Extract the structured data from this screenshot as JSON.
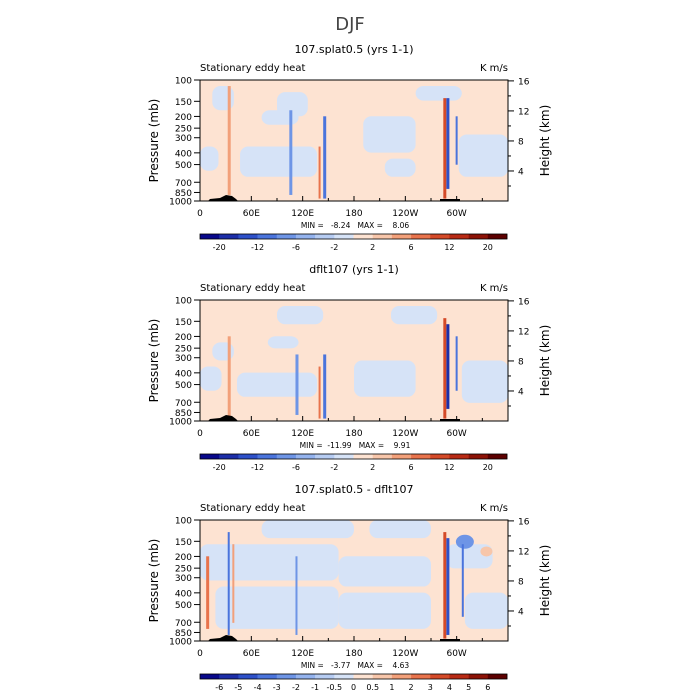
{
  "figure": {
    "title": "DJF"
  },
  "chart_data": [
    {
      "type": "heatmap",
      "title": "107.splat0.5 (yrs 1-1)",
      "left_label": "Stationary eddy heat",
      "right_label": "K m/s",
      "ylabel": "Pressure (mb)",
      "ylabel_right": "Height (km)",
      "x_ticks": [
        "0",
        "60E",
        "120E",
        "180",
        "120W",
        "60W"
      ],
      "x_tick_values": [
        0,
        60,
        120,
        180,
        240,
        300
      ],
      "xlim": [
        0,
        360
      ],
      "y_ticks": [
        "100",
        "150",
        "200",
        "250",
        "300",
        "400",
        "500",
        "700",
        "850",
        "1000"
      ],
      "y_tick_values": [
        100,
        150,
        200,
        250,
        300,
        400,
        500,
        700,
        850,
        1000
      ],
      "ylim": [
        1000,
        100
      ],
      "y_right_ticks": [
        "4",
        "8",
        "12",
        "16"
      ],
      "y_right_tick_values": [
        4,
        8,
        12,
        16
      ],
      "stats": "MIN =   -8.24   MAX =    8.06",
      "colorbar_labels": [
        "-20",
        "-12",
        "-6",
        "-2",
        "2",
        "6",
        "12",
        "20"
      ]
    },
    {
      "type": "heatmap",
      "title": "dflt107 (yrs 1-1)",
      "left_label": "Stationary eddy heat",
      "right_label": "K m/s",
      "ylabel": "Pressure (mb)",
      "ylabel_right": "Height (km)",
      "x_ticks": [
        "0",
        "60E",
        "120E",
        "180",
        "120W",
        "60W"
      ],
      "x_tick_values": [
        0,
        60,
        120,
        180,
        240,
        300
      ],
      "xlim": [
        0,
        360
      ],
      "y_ticks": [
        "100",
        "150",
        "200",
        "250",
        "300",
        "400",
        "500",
        "700",
        "850",
        "1000"
      ],
      "y_tick_values": [
        100,
        150,
        200,
        250,
        300,
        400,
        500,
        700,
        850,
        1000
      ],
      "ylim": [
        1000,
        100
      ],
      "y_right_ticks": [
        "4",
        "8",
        "12",
        "16"
      ],
      "y_right_tick_values": [
        4,
        8,
        12,
        16
      ],
      "stats": "MIN =  -11.99   MAX =    9.91",
      "colorbar_labels": [
        "-20",
        "-12",
        "-6",
        "-2",
        "2",
        "6",
        "12",
        "20"
      ]
    },
    {
      "type": "heatmap",
      "title": "107.splat0.5 - dflt107",
      "left_label": "Stationary eddy heat",
      "right_label": "K m/s",
      "ylabel": "Pressure (mb)",
      "ylabel_right": "Height (km)",
      "x_ticks": [
        "0",
        "60E",
        "120E",
        "180",
        "120W",
        "60W"
      ],
      "x_tick_values": [
        0,
        60,
        120,
        180,
        240,
        300
      ],
      "xlim": [
        0,
        360
      ],
      "y_ticks": [
        "100",
        "150",
        "200",
        "250",
        "300",
        "400",
        "500",
        "700",
        "850",
        "1000"
      ],
      "y_tick_values": [
        100,
        150,
        200,
        250,
        300,
        400,
        500,
        700,
        850,
        1000
      ],
      "ylim": [
        1000,
        100
      ],
      "y_right_ticks": [
        "4",
        "8",
        "12",
        "16"
      ],
      "y_right_tick_values": [
        4,
        8,
        12,
        16
      ],
      "stats": "MIN =   -3.77   MAX =    4.63",
      "colorbar_labels": [
        "-6",
        "-5",
        "-4",
        "-3",
        "-2",
        "-1",
        "-0.5",
        "0",
        "0.5",
        "1",
        "2",
        "3",
        "4",
        "5",
        "6"
      ]
    }
  ],
  "colors": {
    "colorbar": [
      "#08088a",
      "#1c2ea8",
      "#2d50c8",
      "#4a74dc",
      "#6e95e6",
      "#94b3ee",
      "#b6ccf2",
      "#d6e3f7",
      "#fde3d2",
      "#f7c6aa",
      "#f2a07a",
      "#e8734c",
      "#d44a28",
      "#b82a14",
      "#8c1206",
      "#5c0000"
    ],
    "pale_blue": "#d6e3f7",
    "pale_orange": "#fde3d2",
    "topography": "#000000"
  }
}
